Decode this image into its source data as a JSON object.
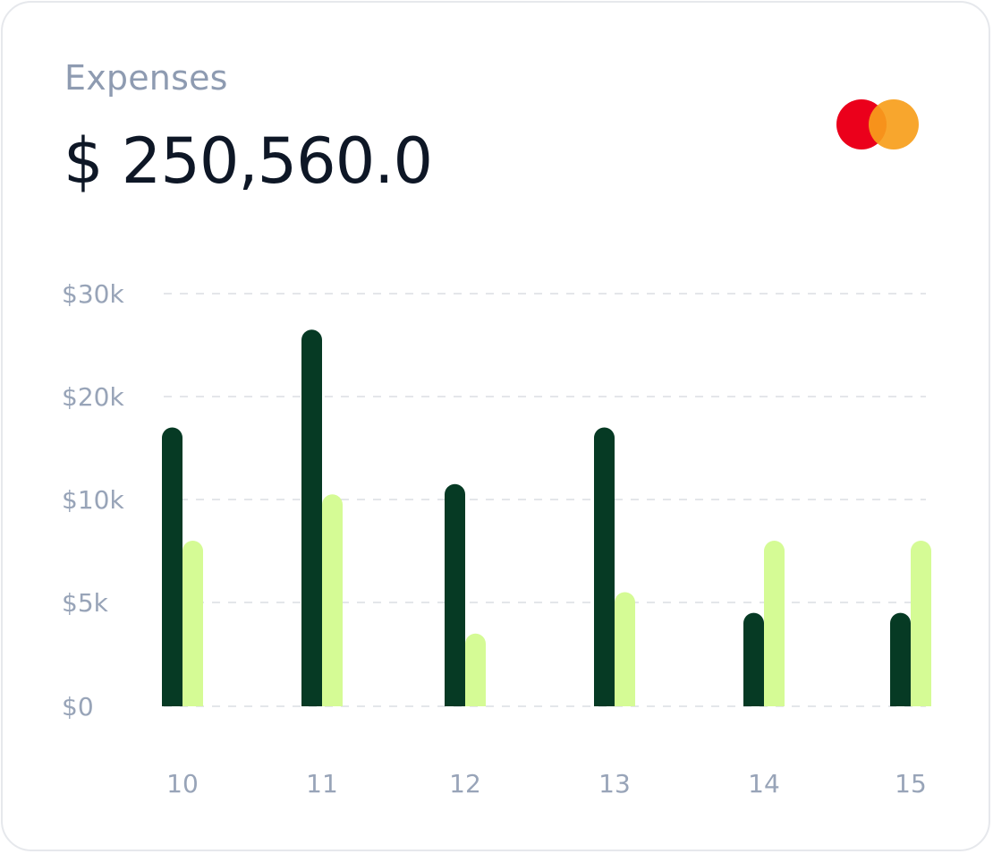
{
  "card": {
    "title": "Expenses",
    "amount": "$ 250,560.0",
    "brand_icon": "mastercard-logo-icon"
  },
  "colors": {
    "series_a": "#063a24",
    "series_b": "#d5fb95",
    "logo_red": "#eb001b",
    "logo_orange": "#f79e1b",
    "grid": "#e4e6ea",
    "axis_text": "#98a4b8"
  },
  "chart_data": {
    "type": "bar",
    "categories": [
      "10",
      "11",
      "12",
      "13",
      "14",
      "15"
    ],
    "series": [
      {
        "values": [
          17000,
          26500,
          11500,
          17000,
          4500,
          4500
        ]
      },
      {
        "values": [
          8000,
          10500,
          3500,
          5500,
          8000,
          8000
        ]
      }
    ],
    "y_ticks": [
      0,
      5000,
      10000,
      20000,
      30000
    ],
    "y_tick_labels": [
      "$0",
      "$5k",
      "$10k",
      "$20k",
      "$30k"
    ],
    "ylim": [
      0,
      30000
    ],
    "grid": true,
    "title": "",
    "xlabel": "",
    "ylabel": ""
  }
}
